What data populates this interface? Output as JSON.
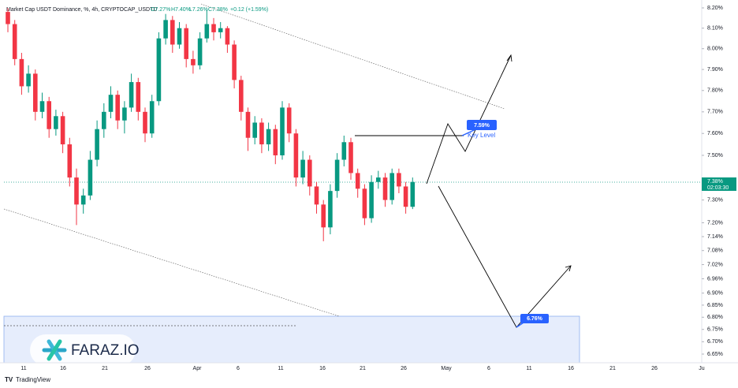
{
  "chart_data": {
    "type": "candlestick",
    "title": "Market Cap USDT Dominance, %, 4h, CRYPTOCAP_USDTD",
    "ohlc_text": [
      "O7.27%",
      "H7.40%",
      "L7.26%",
      "C7.38%",
      "+0.12 (+1.59%)"
    ],
    "log_scale": true,
    "grid": false,
    "up_color": "#089981",
    "down_color": "#f23645",
    "ylim": [
      6.65,
      8.2
    ],
    "yticks": [
      {
        "value": 8.2,
        "label": "8.20%"
      },
      {
        "value": 8.1,
        "label": "8.10%"
      },
      {
        "value": 8.0,
        "label": "8.00%"
      },
      {
        "value": 7.9,
        "label": "7.90%"
      },
      {
        "value": 7.8,
        "label": "7.80%"
      },
      {
        "value": 7.7,
        "label": "7.70%"
      },
      {
        "value": 7.6,
        "label": "7.60%"
      },
      {
        "value": 7.5,
        "label": "7.50%"
      },
      {
        "value": 7.3,
        "label": "7.30%"
      },
      {
        "value": 7.2,
        "label": "7.20%"
      },
      {
        "value": 7.14,
        "label": "7.14%"
      },
      {
        "value": 7.08,
        "label": "7.08%"
      },
      {
        "value": 7.02,
        "label": "7.02%"
      },
      {
        "value": 6.96,
        "label": "6.96%"
      },
      {
        "value": 6.9,
        "label": "6.90%"
      },
      {
        "value": 6.85,
        "label": "6.85%"
      },
      {
        "value": 6.8,
        "label": "6.80%"
      },
      {
        "value": 6.75,
        "label": "6.75%"
      },
      {
        "value": 6.7,
        "label": "6.70%"
      },
      {
        "value": 6.65,
        "label": "6.65%"
      }
    ],
    "x_labels": [
      "11",
      "16",
      "21",
      "26",
      "Apr",
      "6",
      "11",
      "16",
      "21",
      "26",
      "May",
      "6",
      "11",
      "16",
      "21",
      "26",
      "Ju"
    ],
    "candles": [
      [
        8.18,
        8.2,
        8.08,
        8.12
      ],
      [
        8.12,
        8.14,
        7.92,
        7.95
      ],
      [
        7.95,
        7.98,
        7.78,
        7.82
      ],
      [
        7.82,
        7.92,
        7.79,
        7.88
      ],
      [
        7.88,
        7.9,
        7.66,
        7.7
      ],
      [
        7.7,
        7.79,
        7.67,
        7.75
      ],
      [
        7.75,
        7.77,
        7.58,
        7.62
      ],
      [
        7.62,
        7.71,
        7.59,
        7.68
      ],
      [
        7.68,
        7.7,
        7.51,
        7.55
      ],
      [
        7.55,
        7.58,
        7.36,
        7.4
      ],
      [
        7.4,
        7.44,
        7.19,
        7.28
      ],
      [
        7.28,
        7.35,
        7.24,
        7.32
      ],
      [
        7.32,
        7.52,
        7.3,
        7.48
      ],
      [
        7.48,
        7.66,
        7.45,
        7.62
      ],
      [
        7.62,
        7.74,
        7.58,
        7.7
      ],
      [
        7.7,
        7.82,
        7.67,
        7.78
      ],
      [
        7.78,
        7.8,
        7.62,
        7.66
      ],
      [
        7.66,
        7.75,
        7.6,
        7.72
      ],
      [
        7.72,
        7.88,
        7.7,
        7.84
      ],
      [
        7.84,
        7.86,
        7.66,
        7.7
      ],
      [
        7.7,
        7.72,
        7.56,
        7.6
      ],
      [
        7.6,
        7.78,
        7.58,
        7.75
      ],
      [
        7.75,
        8.08,
        7.73,
        8.05
      ],
      [
        8.05,
        8.17,
        8.02,
        8.14
      ],
      [
        8.14,
        8.16,
        7.98,
        8.02
      ],
      [
        8.02,
        8.13,
        8.0,
        8.1
      ],
      [
        8.1,
        8.12,
        7.91,
        7.95
      ],
      [
        7.95,
        7.99,
        7.88,
        7.92
      ],
      [
        7.92,
        8.08,
        7.9,
        8.05
      ],
      [
        8.05,
        8.19,
        8.03,
        8.12
      ],
      [
        8.12,
        8.15,
        8.04,
        8.08
      ],
      [
        8.08,
        8.13,
        8.05,
        8.1
      ],
      [
        8.1,
        8.11,
        7.98,
        8.02
      ],
      [
        8.02,
        8.04,
        7.81,
        7.85
      ],
      [
        7.85,
        7.87,
        7.66,
        7.7
      ],
      [
        7.7,
        7.72,
        7.52,
        7.58
      ],
      [
        7.58,
        7.68,
        7.55,
        7.65
      ],
      [
        7.65,
        7.67,
        7.51,
        7.55
      ],
      [
        7.55,
        7.65,
        7.52,
        7.62
      ],
      [
        7.62,
        7.64,
        7.46,
        7.5
      ],
      [
        7.5,
        7.75,
        7.48,
        7.72
      ],
      [
        7.72,
        7.74,
        7.56,
        7.6
      ],
      [
        7.6,
        7.62,
        7.36,
        7.4
      ],
      [
        7.4,
        7.52,
        7.37,
        7.48
      ],
      [
        7.48,
        7.5,
        7.32,
        7.36
      ],
      [
        7.36,
        7.38,
        7.24,
        7.28
      ],
      [
        7.28,
        7.3,
        7.12,
        7.18
      ],
      [
        7.18,
        7.37,
        7.15,
        7.34
      ],
      [
        7.34,
        7.51,
        7.31,
        7.48
      ],
      [
        7.48,
        7.59,
        7.45,
        7.56
      ],
      [
        7.56,
        7.58,
        7.39,
        7.42
      ],
      [
        7.42,
        7.44,
        7.31,
        7.35
      ],
      [
        7.35,
        7.37,
        7.19,
        7.22
      ],
      [
        7.22,
        7.41,
        7.2,
        7.38
      ],
      [
        7.38,
        7.43,
        7.35,
        7.4
      ],
      [
        7.4,
        7.42,
        7.27,
        7.3
      ],
      [
        7.3,
        7.44,
        7.28,
        7.42
      ],
      [
        7.42,
        7.44,
        7.33,
        7.36
      ],
      [
        7.36,
        7.38,
        7.24,
        7.27
      ],
      [
        7.27,
        7.4,
        7.26,
        7.38
      ]
    ],
    "price_tag": "7.38%",
    "countdown": "02:03:30",
    "annotations": [
      "7.59%",
      "Key Level",
      "6.76%"
    ],
    "watermark": "FARAZ.IO",
    "footer": "TradingView"
  }
}
